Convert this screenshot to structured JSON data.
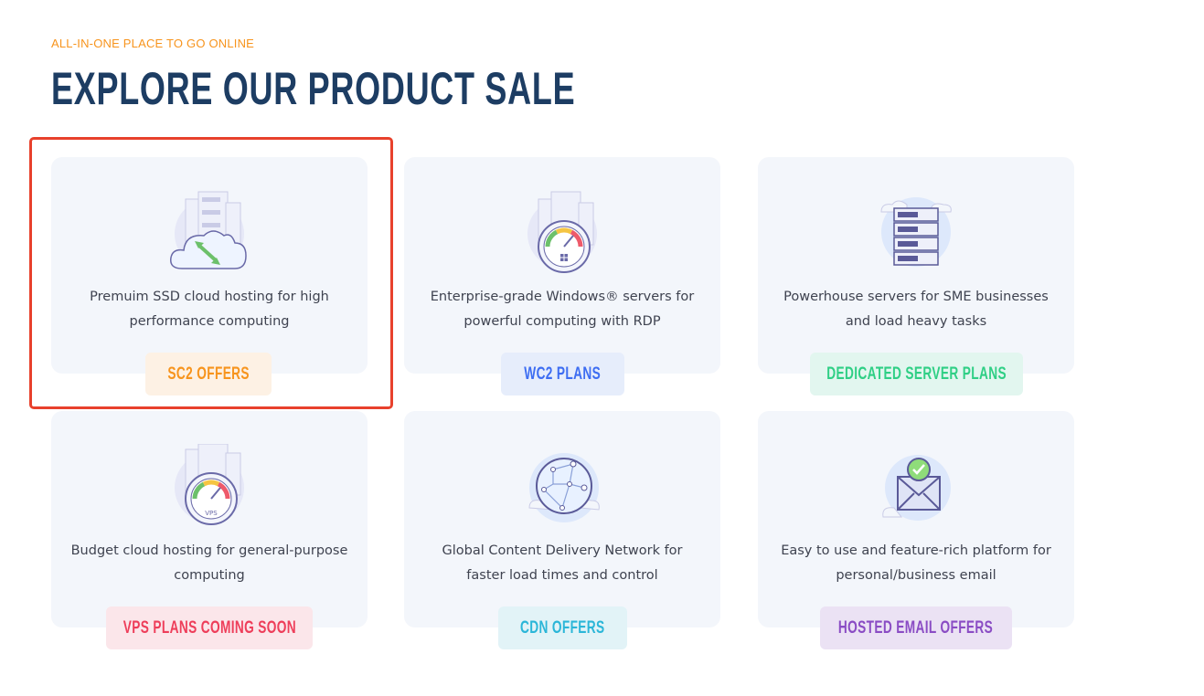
{
  "header": {
    "eyebrow": "ALL-IN-ONE PLACE TO GO ONLINE",
    "title": "EXPLORE OUR PRODUCT SALE"
  },
  "products": [
    {
      "icon": "cloud-server-icon",
      "description": "Premuim SSD cloud hosting for high performance computing",
      "button": "SC2 OFFERS",
      "button_color": "#f7941d",
      "button_bg": "#fdf1e4"
    },
    {
      "icon": "windows-speedometer-icon",
      "description": "Enterprise-grade Windows® servers for powerful computing with RDP",
      "button": "WC2 PLANS",
      "button_color": "#3d6df2",
      "button_bg": "#e6edfb"
    },
    {
      "icon": "server-rack-icon",
      "description": "Powerhouse servers for SME businesses and load heavy tasks",
      "button": "DEDICATED SERVER PLANS",
      "button_color": "#2fcf85",
      "button_bg": "#e2f6ef"
    },
    {
      "icon": "vps-speedometer-icon",
      "description": "Budget cloud hosting for general-purpose computing",
      "button": "VPS PLANS COMING SOON",
      "button_color": "#ee3e5a",
      "button_bg": "#fbe6ea"
    },
    {
      "icon": "globe-network-icon",
      "description": "Global Content Delivery Network for faster load times and control",
      "button": "CDN OFFERS",
      "button_color": "#2bb6d8",
      "button_bg": "#e2f3f7"
    },
    {
      "icon": "email-check-icon",
      "description": "Easy to use and feature-rich platform for personal/business email",
      "button": "HOSTED EMAIL OFFERS",
      "button_color": "#8a4cc4",
      "button_bg": "#ebe2f4"
    }
  ],
  "highlight_color": "#e8412c"
}
